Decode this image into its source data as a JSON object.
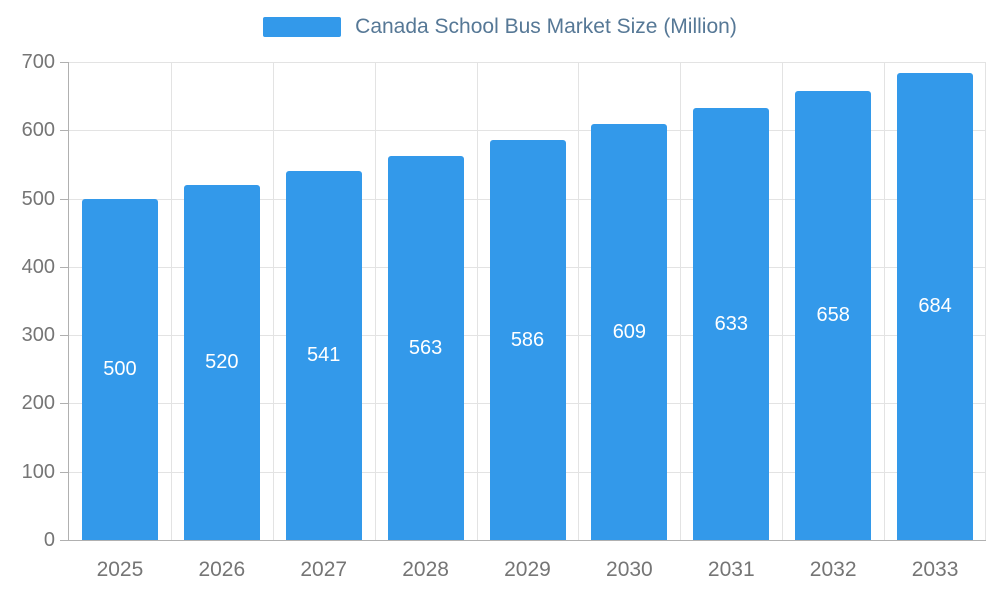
{
  "legend": {
    "label": "Canada School Bus Market Size (Million)"
  },
  "chart_data": {
    "type": "bar",
    "title": "Canada School Bus Market Size (Million)",
    "categories": [
      "2025",
      "2026",
      "2027",
      "2028",
      "2029",
      "2030",
      "2031",
      "2032",
      "2033"
    ],
    "values": [
      500,
      520,
      541,
      563,
      586,
      609,
      633,
      658,
      684
    ],
    "xlabel": "",
    "ylabel": "",
    "ylim": [
      0,
      700
    ],
    "ytick_step": 100,
    "yticks": [
      0,
      100,
      200,
      300,
      400,
      500,
      600,
      700
    ],
    "grid": true,
    "legend_position": "top",
    "value_labels": "inside-center"
  },
  "colors": {
    "bar": "#3399ea",
    "value_label": "#ffffff",
    "axis_text": "#757575",
    "axis_line": "#b0b0b0",
    "grid": "#e3e3e3",
    "legend_text": "#567896",
    "background": "#ffffff"
  }
}
